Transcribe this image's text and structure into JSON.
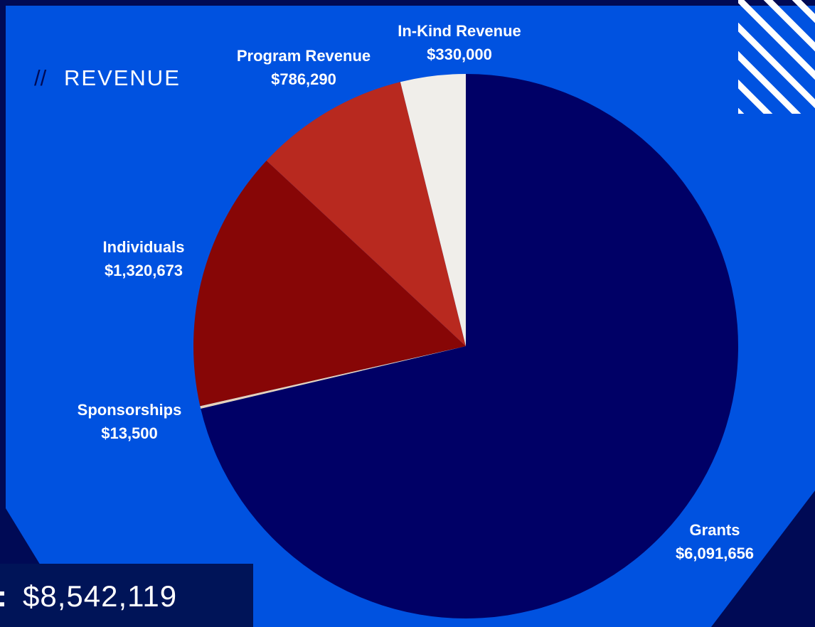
{
  "chart_data": {
    "type": "pie",
    "title_mark": "//",
    "title": "REVENUE",
    "categories": [
      "Grants",
      "Sponsorships",
      "Individuals",
      "Program Revenue",
      "In-Kind Revenue"
    ],
    "values": [
      6091656,
      13500,
      1320673,
      786290,
      330000
    ],
    "value_labels": [
      "$6,091,656",
      "$13,500",
      "$1,320,673",
      "$786,290",
      "$330,000"
    ],
    "colors": [
      "#000066",
      "#e6d2bb",
      "#870606",
      "#b8291f",
      "#f0eeea"
    ],
    "total_prefix": ":",
    "total": "$8,542,119"
  }
}
